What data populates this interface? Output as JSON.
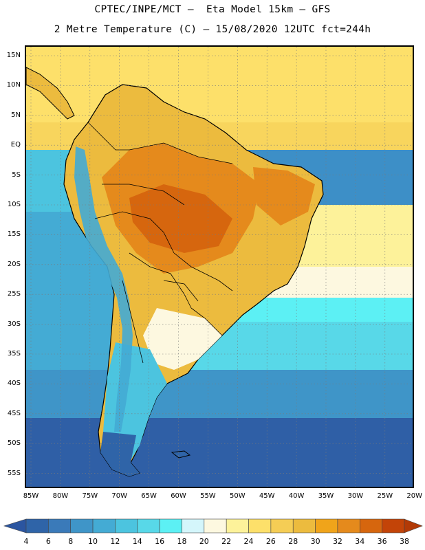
{
  "title_line1": "CPTEC/INPE/MCT –  Eta Model 15km – GFS",
  "title_line2": "2 Metre Temperature (C) – 15/08/2020 12UTC fct=244h",
  "lat_labels": [
    "15N",
    "10N",
    "5N",
    "EQ",
    "5S",
    "10S",
    "15S",
    "20S",
    "25S",
    "30S",
    "35S",
    "40S",
    "45S",
    "50S",
    "55S"
  ],
  "lon_labels": [
    "85W",
    "80W",
    "75W",
    "70W",
    "65W",
    "60W",
    "55W",
    "50W",
    "45W",
    "40W",
    "35W",
    "30W",
    "25W",
    "20W"
  ],
  "colorbar": {
    "labels": [
      "4",
      "6",
      "8",
      "10",
      "12",
      "14",
      "16",
      "18",
      "20",
      "22",
      "24",
      "26",
      "28",
      "30",
      "32",
      "34",
      "36",
      "38"
    ],
    "colors": [
      "#2f64a8",
      "#3a7ab9",
      "#3f95c8",
      "#44abd4",
      "#4cc4df",
      "#58d8e8",
      "#5cf0f4",
      "#d4f6fb",
      "#fdf8e0",
      "#fdf29a",
      "#fde06a",
      "#f5cd55",
      "#ecbb3e",
      "#f0a41a",
      "#e58a1c",
      "#d6660e",
      "#c34408"
    ],
    "under_color": "#2b55a0",
    "over_color": "#b23a06"
  },
  "map_colors": {
    "ocean_cold": "#2f5fa6",
    "ocean_cool": "#3d8fc7",
    "ocean_mid": "#4cc4df",
    "ocean_warm": "#5ce6ef",
    "ocean_tropic": "#fde06a",
    "land_hot": "#e58a1c",
    "land_very_hot": "#d6660e",
    "land_warm": "#ecbb3e",
    "andes": "#44abd4"
  }
}
